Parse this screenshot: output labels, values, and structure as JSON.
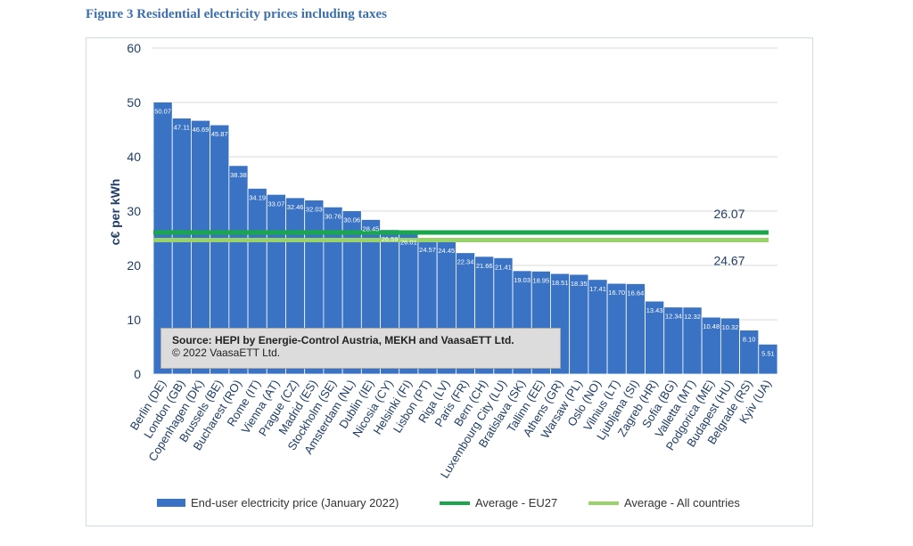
{
  "figure_title": "Figure 3 Residential electricity prices including taxes",
  "source": {
    "line1": "Source: HEPI by Energie-Control Austria, MEKH and VaasaETT Ltd.",
    "line2": "© 2022 VaasaETT Ltd."
  },
  "legend": {
    "bars": "End-user electricity price (January 2022)",
    "avg_eu27": "Average - EU27",
    "avg_all": "Average - All countries"
  },
  "colors": {
    "bar": "#3a73c4",
    "avg_eu27": "#1aa64a",
    "avg_all": "#99d26a",
    "axis_text": "#1f3d66",
    "grid": "#d9d9d9"
  },
  "chart_data": {
    "type": "bar",
    "title": "Figure 3 Residential electricity prices including taxes",
    "ylabel": "c€ per kWh",
    "xlabel": "",
    "ylim": [
      0,
      60
    ],
    "yticks": [
      0,
      10,
      20,
      30,
      40,
      50,
      60
    ],
    "grid": true,
    "categories": [
      "Berlin (DE)",
      "London (GB)",
      "Copenhagen (DK)",
      "Brussels (BE)",
      "Bucharest (RO)",
      "Rome (IT)",
      "Vienna (AT)",
      "Prague (CZ)",
      "Madrid (ES)",
      "Stockholm (SE)",
      "Amsterdam (NL)",
      "Dublin (IE)",
      "Nicosia (CY)",
      "Helsinki (FI)",
      "Lisbon (PT)",
      "Riga (LV)",
      "Paris (FR)",
      "Bern (CH)",
      "Luxembourg City (LU)",
      "Bratislava (SK)",
      "Tallinn (EE)",
      "Athens (GR)",
      "Warsaw (PL)",
      "Oslo (NO)",
      "Vilnius (LT)",
      "Ljubljana (SI)",
      "Zagreb (HR)",
      "Sofia (BG)",
      "Valletta (MT)",
      "Podgorica (ME)",
      "Budapest (HU)",
      "Belgrade (RS)",
      "Kyiv (UA)"
    ],
    "values": [
      50.07,
      47.11,
      46.69,
      45.87,
      38.38,
      34.19,
      33.07,
      32.46,
      32.03,
      30.76,
      30.06,
      28.45,
      26.59,
      26.01,
      24.57,
      24.45,
      22.34,
      21.66,
      21.41,
      19.03,
      18.95,
      18.51,
      18.35,
      17.41,
      16.7,
      16.64,
      13.43,
      12.34,
      12.32,
      10.48,
      10.32,
      8.1,
      5.51
    ],
    "value_labels": [
      "50.07",
      "47.11",
      "46.69",
      "45.87",
      "38.38",
      "34.19",
      "33.07",
      "32.46",
      "32.03",
      "30.76",
      "30.06",
      "28.45",
      "26.59",
      "26.01",
      "24.57",
      "24.45",
      "22.34",
      "21.66",
      "21.41",
      "19.03",
      "18.95",
      "18.51",
      "18.35",
      "17.41",
      "16.70",
      "16.64",
      "13.43",
      "12.34",
      "12.32",
      "10.48",
      "10.32",
      "8.10",
      "5.51"
    ],
    "reference_lines": [
      {
        "name": "Average - EU27",
        "value": 26.07,
        "label": "26.07"
      },
      {
        "name": "Average - All countries",
        "value": 24.67,
        "label": "24.67"
      }
    ]
  }
}
